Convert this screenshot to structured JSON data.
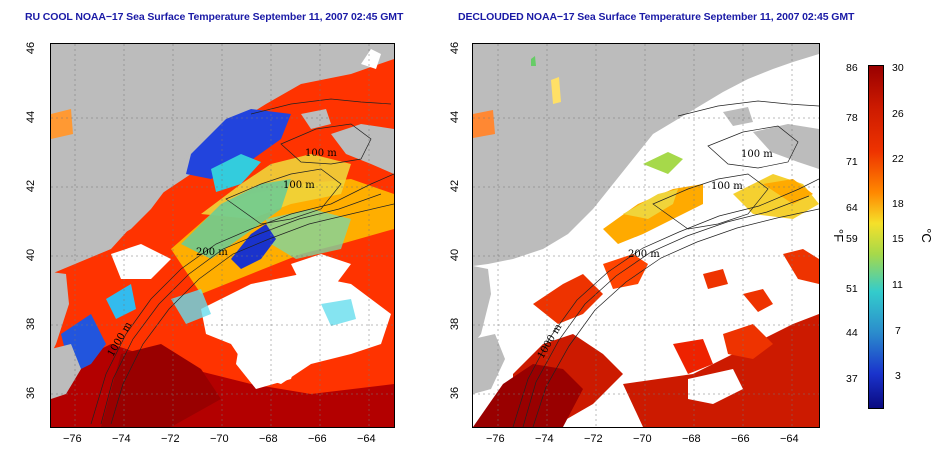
{
  "left_title": "RU COOL NOAA−17 Sea Surface Temperature September 11, 2007 02:45 GMT",
  "right_title": "DECLOUDED NOAA−17 Sea Surface Temperature September 11, 2007 02:45 GMT",
  "x_ticks": [
    "−76",
    "−74",
    "−72",
    "−70",
    "−68",
    "−66",
    "−64"
  ],
  "y_ticks": [
    "46",
    "44",
    "42",
    "40",
    "38",
    "36"
  ],
  "contours": [
    "100 m",
    "100 m",
    "200 m",
    "200 m",
    "1000 m"
  ],
  "colorbar": {
    "fahrenheit": [
      "86",
      "78",
      "71",
      "64",
      "59",
      "51",
      "44",
      "37"
    ],
    "celsius": [
      "30",
      "26",
      "22",
      "18",
      "15",
      "11",
      "7",
      "3"
    ],
    "unit_f": "°F",
    "unit_c": "°C",
    "colors": [
      "#990000",
      "#ee3300",
      "#ff8800",
      "#f5e02a",
      "#a6d94a",
      "#33cccc",
      "#2b8ccc",
      "#1a33cc",
      "#0a0a80"
    ]
  },
  "colors": {
    "land": "#bcbcbc",
    "cloud": "#ffffff",
    "title": "#1a1aa6"
  }
}
